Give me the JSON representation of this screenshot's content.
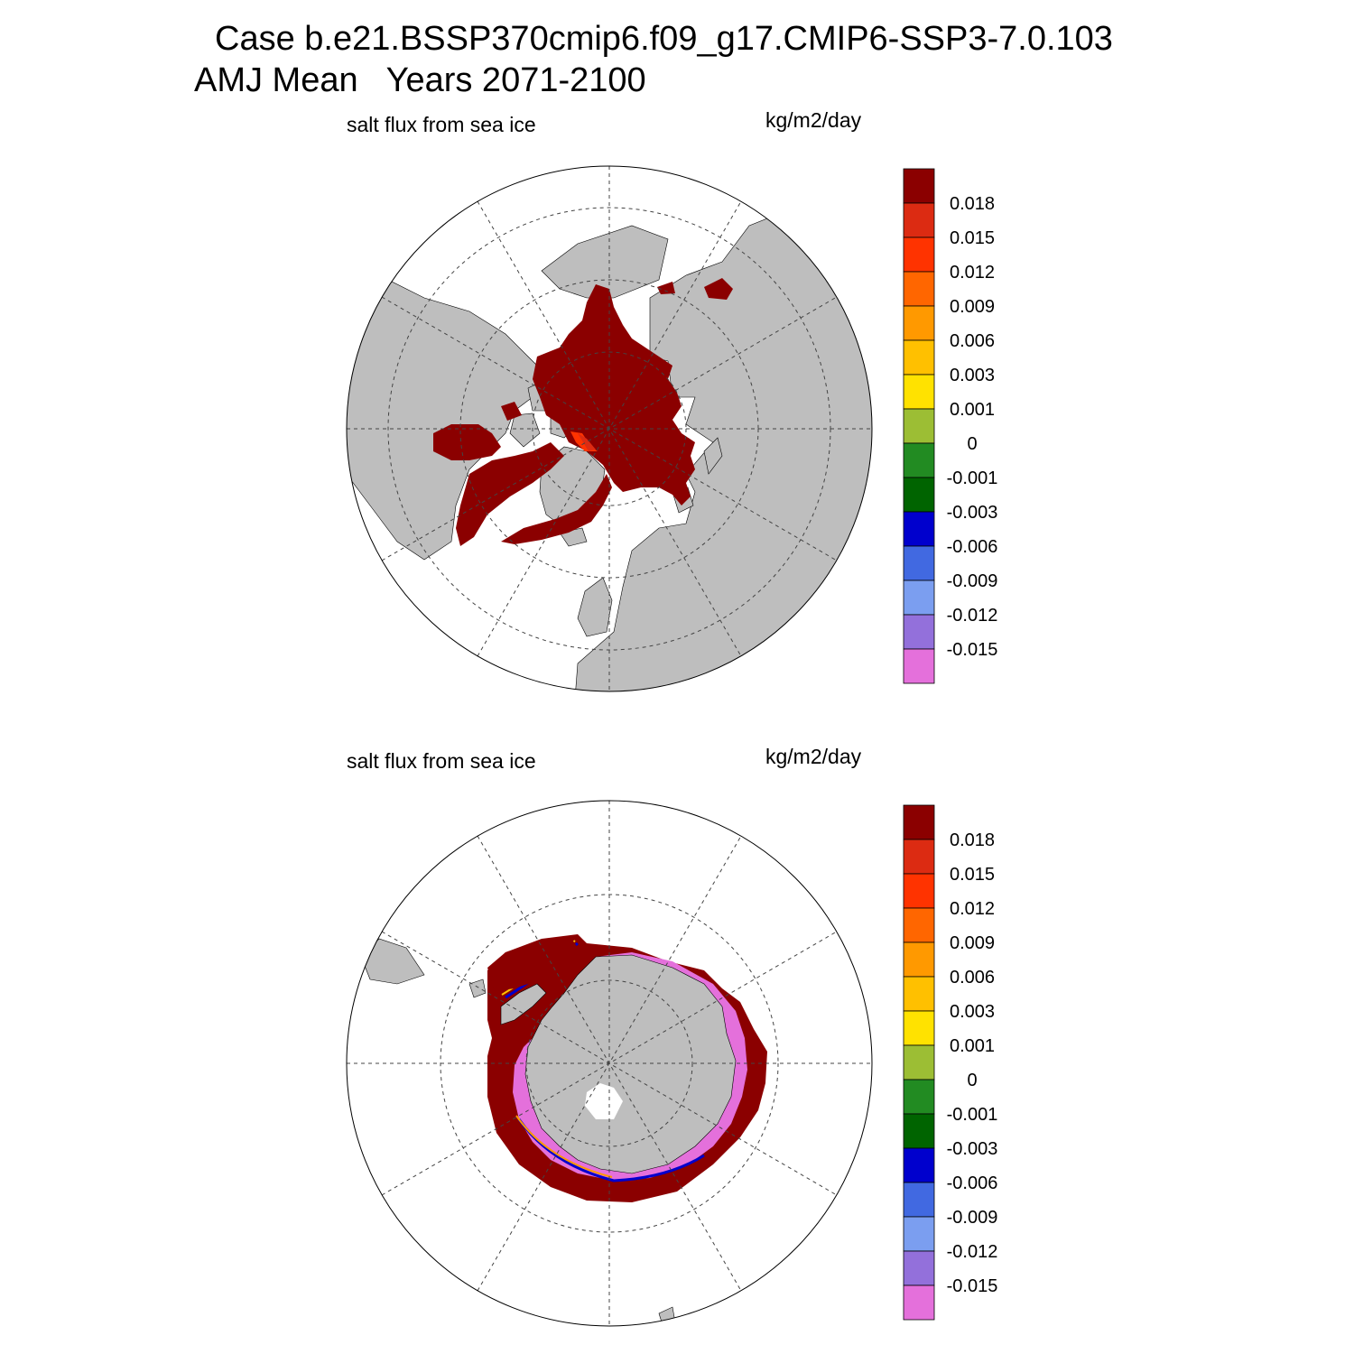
{
  "title": {
    "line1": "Case b.e21.BSSP370cmip6.f09_g17.CMIP6-SSP3-7.0.103",
    "line2": "AMJ Mean   Years 2071-2100"
  },
  "colors": {
    "land": "#bebebe",
    "ocean": "#ffffff",
    "bands": [
      "#8b0000",
      "#dc2b12",
      "#ff3300",
      "#ff6600",
      "#ff9900",
      "#ffc000",
      "#ffe200",
      "#9cbe34",
      "#228b22",
      "#006400",
      "#0000cd",
      "#4169e1",
      "#7b9ef0",
      "#9370db",
      "#e470db"
    ]
  },
  "colorbar": {
    "labels": [
      "0.018",
      "0.015",
      "0.012",
      "0.009",
      "0.006",
      "0.003",
      "0.001",
      "0",
      "-0.001",
      "-0.003",
      "-0.006",
      "-0.009",
      "-0.012",
      "-0.015"
    ]
  },
  "panels": [
    {
      "name": "north",
      "variable": "salt flux from sea ice",
      "units": "kg/m2/day",
      "hemisphere": "north"
    },
    {
      "name": "south",
      "variable": "salt flux from sea ice",
      "units": "kg/m2/day",
      "hemisphere": "south"
    }
  ]
}
